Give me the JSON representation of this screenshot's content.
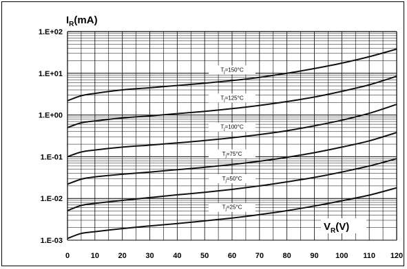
{
  "chart_data": {
    "type": "line",
    "title": "",
    "ylabel": {
      "main": "I",
      "sub": "R",
      "unit": "(mA)"
    },
    "xlabel": {
      "main": "V",
      "sub": "R",
      "unit": "(V)"
    },
    "x_ticks": [
      0,
      10,
      20,
      30,
      40,
      50,
      60,
      70,
      80,
      90,
      100,
      110,
      120
    ],
    "y_ticks": [
      {
        "value": 0.001,
        "label": "1.E-03"
      },
      {
        "value": 0.01,
        "label": "1.E-02"
      },
      {
        "value": 0.1,
        "label": "1.E-01"
      },
      {
        "value": 1,
        "label": "1.E+00"
      },
      {
        "value": 10,
        "label": "1.E+01"
      },
      {
        "value": 100,
        "label": "1.E+02"
      }
    ],
    "xlim": [
      0,
      120
    ],
    "ylim": [
      0.001,
      100
    ],
    "y_scale": "log",
    "grid": true,
    "series": [
      {
        "name": "Tj=25°C",
        "label_main": "T",
        "label_sub": "j",
        "label_rest": "=25°C",
        "label_x": 60,
        "x": [
          0,
          5,
          10,
          20,
          30,
          40,
          50,
          60,
          70,
          80,
          90,
          100,
          110,
          120
        ],
        "y": [
          0.0011,
          0.00145,
          0.0016,
          0.0019,
          0.0022,
          0.0025,
          0.0029,
          0.0034,
          0.0041,
          0.0051,
          0.0066,
          0.0088,
          0.012,
          0.018
        ]
      },
      {
        "name": "Tj=50°C",
        "label_main": "T",
        "label_sub": "j",
        "label_rest": "=50°C",
        "label_x": 60,
        "x": [
          0,
          5,
          10,
          20,
          30,
          40,
          50,
          60,
          70,
          80,
          90,
          100,
          110,
          120
        ],
        "y": [
          0.0051,
          0.0068,
          0.0076,
          0.009,
          0.0105,
          0.0122,
          0.014,
          0.0165,
          0.02,
          0.025,
          0.032,
          0.043,
          0.06,
          0.09
        ]
      },
      {
        "name": "Tj=75°C",
        "label_main": "T",
        "label_sub": "j",
        "label_rest": "=75°C",
        "label_x": 60,
        "x": [
          0,
          5,
          10,
          20,
          30,
          40,
          50,
          60,
          70,
          80,
          90,
          100,
          110,
          120
        ],
        "y": [
          0.022,
          0.029,
          0.033,
          0.038,
          0.043,
          0.049,
          0.056,
          0.065,
          0.078,
          0.097,
          0.125,
          0.17,
          0.24,
          0.38
        ]
      },
      {
        "name": "Tj=100°C",
        "label_main": "T",
        "label_sub": "j",
        "label_rest": "=100°C",
        "label_x": 60,
        "x": [
          0,
          5,
          10,
          20,
          30,
          40,
          50,
          60,
          70,
          80,
          90,
          100,
          110,
          120
        ],
        "y": [
          0.1,
          0.13,
          0.145,
          0.17,
          0.19,
          0.215,
          0.245,
          0.285,
          0.34,
          0.42,
          0.55,
          0.75,
          1.1,
          1.8
        ]
      },
      {
        "name": "Tj=125°C",
        "label_main": "T",
        "label_sub": "j",
        "label_rest": "=125°C",
        "label_x": 60,
        "x": [
          0,
          5,
          10,
          20,
          30,
          40,
          50,
          60,
          70,
          80,
          90,
          100,
          110,
          120
        ],
        "y": [
          0.5,
          0.65,
          0.72,
          0.85,
          0.95,
          1.08,
          1.22,
          1.42,
          1.7,
          2.1,
          2.7,
          3.7,
          5.3,
          8.5
        ]
      },
      {
        "name": "Tj=150°C",
        "label_main": "T",
        "label_sub": "j",
        "label_rest": "=150°C",
        "label_x": 60,
        "x": [
          0,
          5,
          10,
          20,
          30,
          40,
          50,
          60,
          70,
          80,
          90,
          100,
          110,
          120
        ],
        "y": [
          2.2,
          2.9,
          3.3,
          4.0,
          4.5,
          5.1,
          5.8,
          6.7,
          8.0,
          10.0,
          13.0,
          17.5,
          25,
          38
        ]
      }
    ],
    "colors": {
      "line": "#111111",
      "grid": "#000000",
      "background": "#ffffff"
    }
  }
}
